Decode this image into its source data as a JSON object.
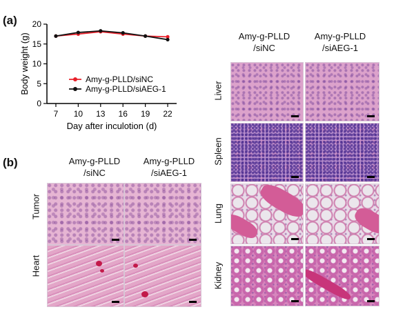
{
  "panel_a": {
    "letter": "(a)"
  },
  "panel_b": {
    "letter": "(b)"
  },
  "chart_data": {
    "type": "line",
    "x": [
      7,
      10,
      13,
      16,
      19,
      22
    ],
    "series": [
      {
        "name": "Amy-g-PLLD/siNC",
        "color": "#e8202a",
        "values": [
          17.0,
          17.5,
          18.1,
          17.5,
          17.0,
          16.8
        ]
      },
      {
        "name": "Amy-g-PLLD/siAEG-1",
        "color": "#111111",
        "values": [
          17.0,
          17.9,
          18.3,
          17.8,
          17.0,
          16.1
        ]
      }
    ],
    "xlabel": "Day after inculotion (d)",
    "ylabel": "Body weight (g)",
    "xticks": [
      7,
      10,
      13,
      16,
      19,
      22
    ],
    "yticks": [
      0,
      5,
      10,
      15,
      20
    ],
    "ylim": [
      0,
      20
    ],
    "legend_position": "lower-left",
    "grid": false
  },
  "histology_left": {
    "columns": [
      "Amy-g-PLLD\n/siNC",
      "Amy-g-PLLD\n/siAEG-1"
    ],
    "col1_line1": "Amy-g-PLLD",
    "col1_line2": "/siNC",
    "col2_line1": "Amy-g-PLLD",
    "col2_line2": "/siAEG-1",
    "rows": [
      "Tumor",
      "Heart"
    ]
  },
  "histology_right": {
    "col1_line1": "Amy-g-PLLD",
    "col1_line2": "/siNC",
    "col2_line1": "Amy-g-PLLD",
    "col2_line2": "/siAEG-1",
    "rows": [
      "Liver",
      "Spleen",
      "Lung",
      "Kidney"
    ]
  }
}
